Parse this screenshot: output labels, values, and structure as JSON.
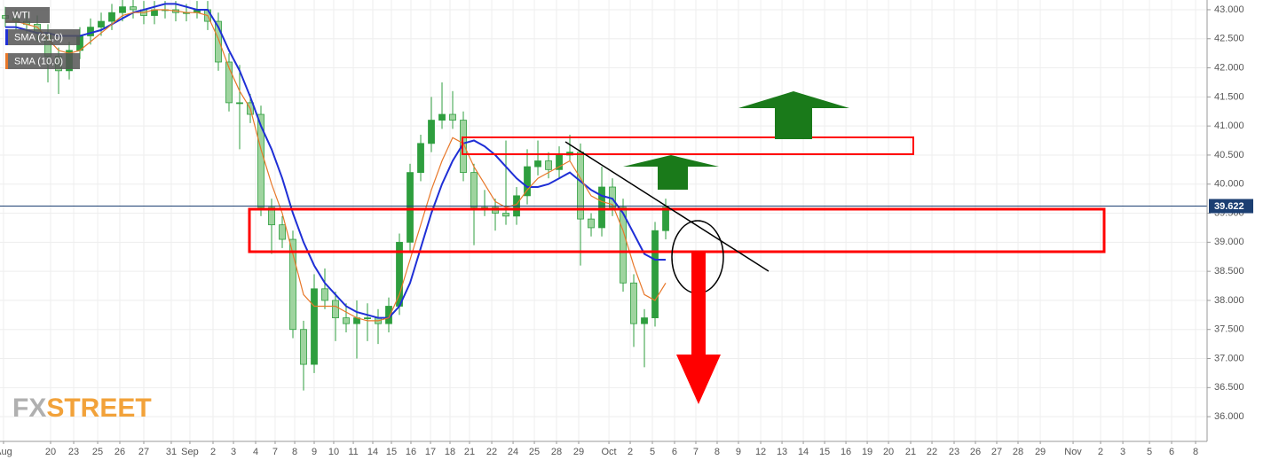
{
  "chart_data": {
    "type": "candlestick",
    "title": "WTI",
    "logo_fx": "FX",
    "logo_street": "STREET",
    "up_color": "#2e9e3e",
    "down_color": "#9fd49f",
    "last_price": 39.622,
    "last_price_color": "#1c3f72",
    "grid": true,
    "ylim": [
      35.575,
      43.167
    ],
    "yticks": [
      {
        "value": 36,
        "label": "36.000"
      },
      {
        "value": 36.5,
        "label": "36.500"
      },
      {
        "value": 37,
        "label": "37.000"
      },
      {
        "value": 37.5,
        "label": "37.500"
      },
      {
        "value": 38,
        "label": "38.000"
      },
      {
        "value": 38.5,
        "label": "38.500"
      },
      {
        "value": 39,
        "label": "39.000"
      },
      {
        "value": 39.5,
        "label": "39.500"
      },
      {
        "value": 40,
        "label": "40.000"
      },
      {
        "value": 40.5,
        "label": "40.500"
      },
      {
        "value": 41,
        "label": "41.000"
      },
      {
        "value": 41.5,
        "label": "41.500"
      },
      {
        "value": 42,
        "label": "42.000"
      },
      {
        "value": 42.5,
        "label": "42.500"
      },
      {
        "value": 43,
        "label": "43.000"
      }
    ],
    "xlim": [
      -0.5,
      112.83
    ],
    "xticks": [
      {
        "value": -0.17,
        "label": "Aug"
      },
      {
        "value": 4.25,
        "label": "20"
      },
      {
        "value": 6.42,
        "label": "23"
      },
      {
        "value": 8.67,
        "label": "25"
      },
      {
        "value": 10.75,
        "label": "26"
      },
      {
        "value": 13,
        "label": "27"
      },
      {
        "value": 15.58,
        "label": "31"
      },
      {
        "value": 17.33,
        "label": "Sep"
      },
      {
        "value": 19.5,
        "label": "2"
      },
      {
        "value": 21.42,
        "label": "3"
      },
      {
        "value": 23.5,
        "label": "4"
      },
      {
        "value": 25.33,
        "label": "7"
      },
      {
        "value": 27.17,
        "label": "8"
      },
      {
        "value": 29,
        "label": "9"
      },
      {
        "value": 30.83,
        "label": "10"
      },
      {
        "value": 32.67,
        "label": "11"
      },
      {
        "value": 34.5,
        "label": "14"
      },
      {
        "value": 36.25,
        "label": "15"
      },
      {
        "value": 38.08,
        "label": "16"
      },
      {
        "value": 39.92,
        "label": "17"
      },
      {
        "value": 41.75,
        "label": "18"
      },
      {
        "value": 43.58,
        "label": "21"
      },
      {
        "value": 45.67,
        "label": "22"
      },
      {
        "value": 47.67,
        "label": "24"
      },
      {
        "value": 49.67,
        "label": "25"
      },
      {
        "value": 51.75,
        "label": "28"
      },
      {
        "value": 53.83,
        "label": "29"
      },
      {
        "value": 56.67,
        "label": "Oct"
      },
      {
        "value": 58.67,
        "label": "2"
      },
      {
        "value": 60.75,
        "label": "5"
      },
      {
        "value": 62.83,
        "label": "6"
      },
      {
        "value": 64.83,
        "label": "7"
      },
      {
        "value": 66.83,
        "label": "8"
      },
      {
        "value": 68.83,
        "label": "9"
      },
      {
        "value": 70.92,
        "label": "12"
      },
      {
        "value": 72.92,
        "label": "13"
      },
      {
        "value": 74.92,
        "label": "14"
      },
      {
        "value": 76.92,
        "label": "15"
      },
      {
        "value": 78.92,
        "label": "16"
      },
      {
        "value": 80.92,
        "label": "19"
      },
      {
        "value": 82.92,
        "label": "20"
      },
      {
        "value": 85,
        "label": "21"
      },
      {
        "value": 87,
        "label": "22"
      },
      {
        "value": 89.08,
        "label": "23"
      },
      {
        "value": 91.08,
        "label": "26"
      },
      {
        "value": 93.08,
        "label": "27"
      },
      {
        "value": 95.08,
        "label": "28"
      },
      {
        "value": 97.17,
        "label": "29"
      },
      {
        "value": 100.25,
        "label": "Nov"
      },
      {
        "value": 102.83,
        "label": "2"
      },
      {
        "value": 104.92,
        "label": "3"
      },
      {
        "value": 107.42,
        "label": "5"
      },
      {
        "value": 109.5,
        "label": "6"
      },
      {
        "value": 111.75,
        "label": "8"
      }
    ],
    "candles": [
      [
        42.9,
        43.05,
        42.7,
        42.85
      ],
      [
        42.85,
        43.0,
        42.65,
        42.8
      ],
      [
        42.8,
        42.95,
        42.6,
        42.75
      ],
      [
        42.75,
        42.9,
        42.45,
        42.6
      ],
      [
        42.6,
        42.75,
        41.75,
        42.2
      ],
      [
        42.2,
        42.35,
        41.55,
        41.95
      ],
      [
        41.95,
        42.45,
        41.8,
        42.3
      ],
      [
        42.3,
        42.7,
        42.15,
        42.55
      ],
      [
        42.55,
        42.85,
        42.4,
        42.7
      ],
      [
        42.7,
        42.95,
        42.55,
        42.8
      ],
      [
        42.8,
        43.1,
        42.65,
        42.95
      ],
      [
        42.95,
        43.2,
        42.8,
        43.05
      ],
      [
        43.05,
        43.2,
        42.85,
        43.0
      ],
      [
        43.0,
        43.15,
        42.75,
        42.9
      ],
      [
        42.9,
        43.15,
        42.75,
        43.0
      ],
      [
        43.0,
        43.15,
        42.85,
        43.0
      ],
      [
        43.0,
        43.15,
        42.8,
        42.95
      ],
      [
        42.95,
        43.1,
        42.8,
        42.95
      ],
      [
        42.95,
        43.15,
        42.85,
        43.0
      ],
      [
        43.0,
        43.15,
        42.65,
        42.8
      ],
      [
        42.8,
        42.95,
        41.95,
        42.1
      ],
      [
        42.1,
        42.25,
        41.25,
        41.4
      ],
      [
        41.4,
        42.05,
        40.6,
        41.4
      ],
      [
        41.4,
        41.55,
        41.05,
        41.2
      ],
      [
        41.2,
        41.35,
        39.45,
        39.6
      ],
      [
        39.6,
        39.75,
        38.8,
        39.3
      ],
      [
        39.3,
        39.45,
        38.9,
        39.05
      ],
      [
        39.05,
        39.2,
        37.35,
        37.5
      ],
      [
        37.5,
        37.65,
        36.45,
        36.9
      ],
      [
        36.9,
        38.45,
        36.75,
        38.2
      ],
      [
        38.2,
        38.55,
        37.85,
        38.0
      ],
      [
        38.0,
        38.15,
        37.3,
        37.7
      ],
      [
        37.7,
        37.95,
        37.45,
        37.6
      ],
      [
        37.6,
        38.0,
        37.0,
        37.7
      ],
      [
        37.7,
        37.95,
        37.3,
        37.7
      ],
      [
        37.7,
        37.85,
        37.25,
        37.6
      ],
      [
        37.6,
        38.05,
        37.45,
        37.9
      ],
      [
        37.9,
        39.15,
        37.75,
        39.0
      ],
      [
        39.0,
        40.35,
        38.85,
        40.2
      ],
      [
        40.2,
        40.85,
        40.05,
        40.7
      ],
      [
        40.7,
        41.5,
        40.55,
        41.1
      ],
      [
        41.1,
        41.75,
        40.95,
        41.2
      ],
      [
        41.2,
        41.6,
        40.95,
        41.1
      ],
      [
        41.1,
        41.25,
        40.05,
        40.2
      ],
      [
        40.2,
        40.35,
        38.95,
        39.6
      ],
      [
        39.6,
        39.9,
        39.45,
        39.6
      ],
      [
        39.6,
        39.75,
        39.2,
        39.5
      ],
      [
        39.5,
        40.75,
        39.3,
        39.45
      ],
      [
        39.45,
        39.95,
        39.3,
        39.8
      ],
      [
        39.8,
        40.6,
        39.65,
        40.3
      ],
      [
        40.3,
        40.75,
        40.15,
        40.4
      ],
      [
        40.4,
        40.55,
        40.1,
        40.25
      ],
      [
        40.25,
        40.65,
        40.1,
        40.5
      ],
      [
        40.5,
        40.85,
        40.4,
        40.55
      ],
      [
        40.55,
        40.7,
        38.6,
        39.4
      ],
      [
        39.4,
        39.5,
        39.1,
        39.25
      ],
      [
        39.25,
        40.3,
        39.1,
        39.95
      ],
      [
        39.95,
        40.1,
        39.45,
        39.6
      ],
      [
        39.6,
        39.75,
        38.15,
        38.3
      ],
      [
        38.3,
        38.45,
        37.2,
        37.6
      ],
      [
        37.6,
        37.85,
        36.85,
        37.7
      ],
      [
        37.7,
        39.35,
        37.55,
        39.2
      ],
      [
        39.2,
        39.75,
        39.05,
        39.6
      ]
    ],
    "series": [
      {
        "name": "SMA (21,0)",
        "color": "#1f2fd6",
        "values": [
          42.7,
          42.7,
          42.65,
          42.6,
          42.6,
          42.55,
          42.55,
          42.55,
          42.6,
          42.65,
          42.75,
          42.85,
          42.95,
          43.0,
          43.05,
          43.1,
          43.1,
          43.05,
          43.0,
          43.0,
          42.7,
          42.3,
          41.95,
          41.5,
          41.0,
          40.6,
          40.1,
          39.5,
          39.0,
          38.6,
          38.3,
          38.1,
          37.9,
          37.8,
          37.75,
          37.7,
          37.7,
          37.9,
          38.3,
          38.9,
          39.5,
          40.0,
          40.4,
          40.7,
          40.75,
          40.65,
          40.5,
          40.3,
          40.1,
          39.95,
          39.95,
          40.0,
          40.1,
          40.2,
          40.05,
          39.9,
          39.8,
          39.75,
          39.5,
          39.15,
          38.8,
          38.7,
          38.7
        ]
      },
      {
        "name": "SMA (10,0)",
        "color": "#e8782a",
        "values": [
          42.8,
          42.8,
          42.75,
          42.7,
          42.5,
          42.3,
          42.25,
          42.3,
          42.45,
          42.6,
          42.75,
          42.9,
          42.95,
          42.95,
          43.0,
          43.0,
          42.98,
          42.95,
          42.95,
          42.9,
          42.5,
          42.0,
          41.6,
          41.3,
          40.6,
          40.0,
          39.5,
          38.8,
          38.1,
          37.9,
          37.9,
          37.9,
          37.8,
          37.7,
          37.65,
          37.65,
          37.7,
          38.1,
          38.7,
          39.3,
          39.9,
          40.4,
          40.8,
          40.7,
          40.3,
          40.0,
          39.7,
          39.6,
          39.65,
          39.9,
          40.1,
          40.2,
          40.3,
          40.4,
          40.1,
          39.8,
          39.7,
          39.65,
          39.2,
          38.6,
          38.1,
          38.0,
          38.3
        ]
      }
    ]
  }
}
